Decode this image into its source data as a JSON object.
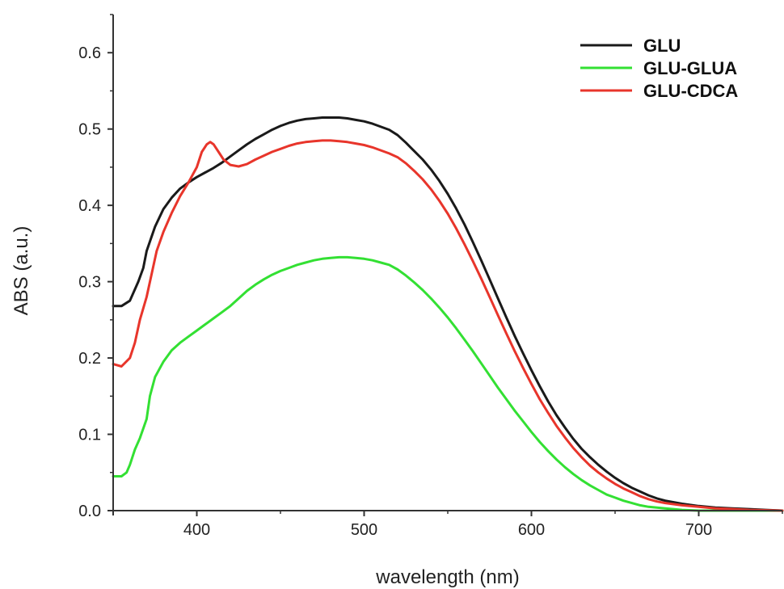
{
  "chart_data": {
    "type": "line",
    "xlabel": "wavelength (nm)",
    "ylabel": "ABS (a.u.)",
    "xlim": [
      350,
      750
    ],
    "ylim": [
      0.0,
      0.65
    ],
    "x_ticks": [
      400,
      500,
      600,
      700
    ],
    "x_tick_labels": [
      "400",
      "500",
      "600",
      "700"
    ],
    "y_ticks": [
      0.0,
      0.1,
      0.2,
      0.3,
      0.4,
      0.5,
      0.6
    ],
    "y_tick_labels": [
      "0.0",
      "0.1",
      "0.2",
      "0.3",
      "0.4",
      "0.5",
      "0.6"
    ],
    "legend_position": "top-right",
    "grid": false,
    "series": [
      {
        "name": "GLU",
        "color": "#1a1a1a",
        "points": [
          [
            350,
            0.268
          ],
          [
            355,
            0.268
          ],
          [
            360,
            0.275
          ],
          [
            365,
            0.3
          ],
          [
            368,
            0.318
          ],
          [
            370,
            0.34
          ],
          [
            375,
            0.372
          ],
          [
            380,
            0.395
          ],
          [
            385,
            0.41
          ],
          [
            390,
            0.422
          ],
          [
            395,
            0.43
          ],
          [
            400,
            0.437
          ],
          [
            405,
            0.443
          ],
          [
            410,
            0.449
          ],
          [
            415,
            0.456
          ],
          [
            420,
            0.464
          ],
          [
            425,
            0.472
          ],
          [
            430,
            0.48
          ],
          [
            435,
            0.487
          ],
          [
            440,
            0.493
          ],
          [
            445,
            0.499
          ],
          [
            450,
            0.504
          ],
          [
            455,
            0.508
          ],
          [
            460,
            0.511
          ],
          [
            465,
            0.513
          ],
          [
            470,
            0.514
          ],
          [
            475,
            0.515
          ],
          [
            480,
            0.515
          ],
          [
            485,
            0.515
          ],
          [
            490,
            0.514
          ],
          [
            495,
            0.512
          ],
          [
            500,
            0.51
          ],
          [
            505,
            0.507
          ],
          [
            510,
            0.503
          ],
          [
            515,
            0.499
          ],
          [
            520,
            0.492
          ],
          [
            525,
            0.482
          ],
          [
            530,
            0.471
          ],
          [
            535,
            0.46
          ],
          [
            540,
            0.447
          ],
          [
            545,
            0.432
          ],
          [
            550,
            0.415
          ],
          [
            555,
            0.396
          ],
          [
            560,
            0.375
          ],
          [
            565,
            0.352
          ],
          [
            570,
            0.328
          ],
          [
            575,
            0.303
          ],
          [
            580,
            0.278
          ],
          [
            585,
            0.253
          ],
          [
            590,
            0.229
          ],
          [
            595,
            0.206
          ],
          [
            600,
            0.184
          ],
          [
            605,
            0.163
          ],
          [
            610,
            0.143
          ],
          [
            615,
            0.125
          ],
          [
            620,
            0.109
          ],
          [
            625,
            0.094
          ],
          [
            630,
            0.081
          ],
          [
            635,
            0.07
          ],
          [
            640,
            0.06
          ],
          [
            645,
            0.051
          ],
          [
            650,
            0.043
          ],
          [
            655,
            0.036
          ],
          [
            660,
            0.03
          ],
          [
            665,
            0.025
          ],
          [
            670,
            0.02
          ],
          [
            675,
            0.016
          ],
          [
            680,
            0.013
          ],
          [
            685,
            0.011
          ],
          [
            690,
            0.009
          ],
          [
            700,
            0.006
          ],
          [
            710,
            0.004
          ],
          [
            720,
            0.003
          ],
          [
            730,
            0.002
          ],
          [
            740,
            0.001
          ],
          [
            750,
            0.0
          ]
        ]
      },
      {
        "name": "GLU-GLUA",
        "color": "#33e033",
        "points": [
          [
            350,
            0.045
          ],
          [
            355,
            0.045
          ],
          [
            358,
            0.05
          ],
          [
            360,
            0.06
          ],
          [
            363,
            0.08
          ],
          [
            366,
            0.095
          ],
          [
            370,
            0.12
          ],
          [
            372,
            0.15
          ],
          [
            375,
            0.175
          ],
          [
            380,
            0.195
          ],
          [
            385,
            0.21
          ],
          [
            390,
            0.22
          ],
          [
            395,
            0.228
          ],
          [
            400,
            0.236
          ],
          [
            405,
            0.244
          ],
          [
            410,
            0.252
          ],
          [
            415,
            0.26
          ],
          [
            420,
            0.268
          ],
          [
            425,
            0.278
          ],
          [
            430,
            0.288
          ],
          [
            435,
            0.296
          ],
          [
            440,
            0.303
          ],
          [
            445,
            0.309
          ],
          [
            450,
            0.314
          ],
          [
            455,
            0.318
          ],
          [
            460,
            0.322
          ],
          [
            465,
            0.325
          ],
          [
            470,
            0.328
          ],
          [
            475,
            0.33
          ],
          [
            480,
            0.331
          ],
          [
            485,
            0.332
          ],
          [
            490,
            0.332
          ],
          [
            495,
            0.331
          ],
          [
            500,
            0.33
          ],
          [
            505,
            0.328
          ],
          [
            510,
            0.325
          ],
          [
            515,
            0.322
          ],
          [
            520,
            0.316
          ],
          [
            525,
            0.308
          ],
          [
            530,
            0.299
          ],
          [
            535,
            0.289
          ],
          [
            540,
            0.278
          ],
          [
            545,
            0.266
          ],
          [
            550,
            0.253
          ],
          [
            555,
            0.239
          ],
          [
            560,
            0.224
          ],
          [
            565,
            0.209
          ],
          [
            570,
            0.193
          ],
          [
            575,
            0.177
          ],
          [
            580,
            0.161
          ],
          [
            585,
            0.146
          ],
          [
            590,
            0.131
          ],
          [
            595,
            0.117
          ],
          [
            600,
            0.103
          ],
          [
            605,
            0.09
          ],
          [
            610,
            0.078
          ],
          [
            615,
            0.067
          ],
          [
            620,
            0.057
          ],
          [
            625,
            0.048
          ],
          [
            630,
            0.04
          ],
          [
            635,
            0.033
          ],
          [
            640,
            0.027
          ],
          [
            645,
            0.021
          ],
          [
            650,
            0.017
          ],
          [
            655,
            0.013
          ],
          [
            660,
            0.01
          ],
          [
            665,
            0.007
          ],
          [
            670,
            0.005
          ],
          [
            680,
            0.003
          ],
          [
            690,
            0.001
          ],
          [
            700,
            0.0
          ],
          [
            720,
            0.0
          ],
          [
            750,
            0.0
          ]
        ]
      },
      {
        "name": "GLU-CDCA",
        "color": "#e8352b",
        "points": [
          [
            350,
            0.192
          ],
          [
            355,
            0.189
          ],
          [
            360,
            0.2
          ],
          [
            363,
            0.22
          ],
          [
            366,
            0.25
          ],
          [
            370,
            0.28
          ],
          [
            373,
            0.31
          ],
          [
            376,
            0.34
          ],
          [
            380,
            0.365
          ],
          [
            385,
            0.39
          ],
          [
            390,
            0.412
          ],
          [
            395,
            0.43
          ],
          [
            400,
            0.45
          ],
          [
            403,
            0.47
          ],
          [
            406,
            0.48
          ],
          [
            408,
            0.483
          ],
          [
            410,
            0.48
          ],
          [
            413,
            0.47
          ],
          [
            416,
            0.46
          ],
          [
            420,
            0.453
          ],
          [
            425,
            0.451
          ],
          [
            430,
            0.454
          ],
          [
            435,
            0.46
          ],
          [
            440,
            0.465
          ],
          [
            445,
            0.47
          ],
          [
            450,
            0.474
          ],
          [
            455,
            0.478
          ],
          [
            460,
            0.481
          ],
          [
            465,
            0.483
          ],
          [
            470,
            0.484
          ],
          [
            475,
            0.485
          ],
          [
            480,
            0.485
          ],
          [
            485,
            0.484
          ],
          [
            490,
            0.483
          ],
          [
            495,
            0.481
          ],
          [
            500,
            0.479
          ],
          [
            505,
            0.476
          ],
          [
            510,
            0.472
          ],
          [
            515,
            0.468
          ],
          [
            520,
            0.463
          ],
          [
            525,
            0.455
          ],
          [
            530,
            0.445
          ],
          [
            535,
            0.434
          ],
          [
            540,
            0.421
          ],
          [
            545,
            0.406
          ],
          [
            550,
            0.389
          ],
          [
            555,
            0.37
          ],
          [
            560,
            0.349
          ],
          [
            565,
            0.327
          ],
          [
            570,
            0.304
          ],
          [
            575,
            0.28
          ],
          [
            580,
            0.256
          ],
          [
            585,
            0.232
          ],
          [
            590,
            0.209
          ],
          [
            595,
            0.187
          ],
          [
            600,
            0.166
          ],
          [
            605,
            0.146
          ],
          [
            610,
            0.128
          ],
          [
            615,
            0.111
          ],
          [
            620,
            0.096
          ],
          [
            625,
            0.082
          ],
          [
            630,
            0.07
          ],
          [
            635,
            0.059
          ],
          [
            640,
            0.05
          ],
          [
            645,
            0.042
          ],
          [
            650,
            0.035
          ],
          [
            655,
            0.029
          ],
          [
            660,
            0.024
          ],
          [
            665,
            0.019
          ],
          [
            670,
            0.015
          ],
          [
            675,
            0.012
          ],
          [
            680,
            0.01
          ],
          [
            690,
            0.007
          ],
          [
            700,
            0.005
          ],
          [
            710,
            0.003
          ],
          [
            720,
            0.002
          ],
          [
            730,
            0.001
          ],
          [
            750,
            0.0
          ]
        ]
      }
    ]
  }
}
